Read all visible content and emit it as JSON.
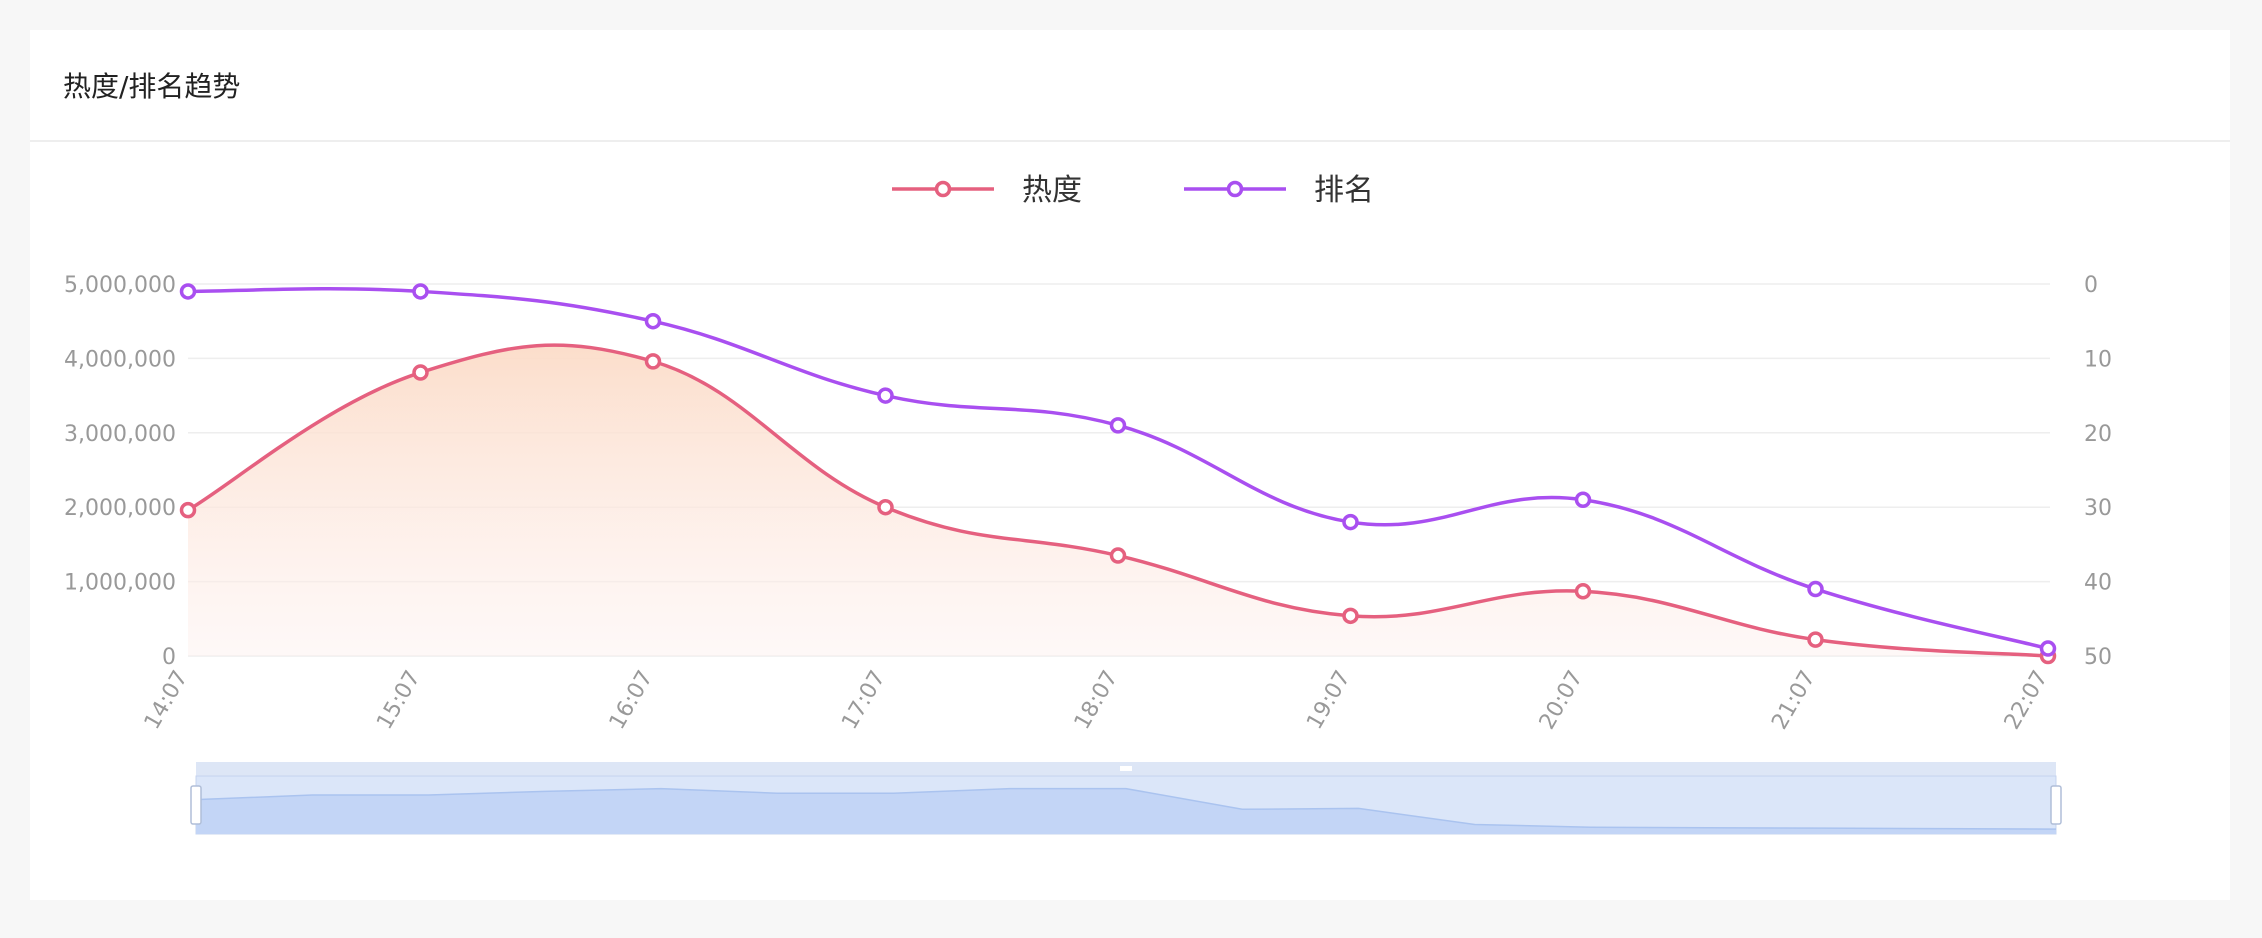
{
  "panel": {
    "title": "热度/排名趋势"
  },
  "chart_data": {
    "type": "line",
    "categories": [
      "14:07",
      "15:07",
      "16:07",
      "17:07",
      "18:07",
      "19:07",
      "20:07",
      "21:07",
      "22:07"
    ],
    "series": [
      {
        "name": "热度",
        "axis": "left",
        "color": "#e5607f",
        "area_fill": true,
        "area_color": "#fbe0d2",
        "values": [
          1960000,
          3810000,
          3960000,
          2000000,
          1350000,
          540000,
          870000,
          220000,
          0
        ]
      },
      {
        "name": "排名",
        "axis": "right",
        "color": "#a94ff0",
        "area_fill": false,
        "values": [
          1,
          1,
          5,
          15,
          19,
          32,
          29,
          41,
          49
        ]
      }
    ],
    "y_left": {
      "ylim": [
        0,
        5000000
      ],
      "ticks": [
        0,
        1000000,
        2000000,
        3000000,
        4000000,
        5000000
      ],
      "tick_labels": [
        "0",
        "1,000,000",
        "2,000,000",
        "3,000,000",
        "4,000,000",
        "5,000,000"
      ]
    },
    "y_right": {
      "ylim": [
        0,
        50
      ],
      "inverted": true,
      "ticks": [
        0,
        10,
        20,
        30,
        40,
        50
      ],
      "tick_labels": [
        "0",
        "10",
        "20",
        "30",
        "40",
        "50"
      ]
    },
    "legend": "top-center",
    "grid": true,
    "x_tick_rotation": -60,
    "data_zoom": {
      "start_percent": 0,
      "end_percent": 100,
      "preview_values": [
        0.66,
        0.76,
        0.76,
        0.84,
        0.9,
        0.8,
        0.8,
        0.9,
        0.9,
        0.45,
        0.47,
        0.12,
        0.06,
        0.05,
        0.04,
        0.03,
        0.02
      ]
    }
  }
}
